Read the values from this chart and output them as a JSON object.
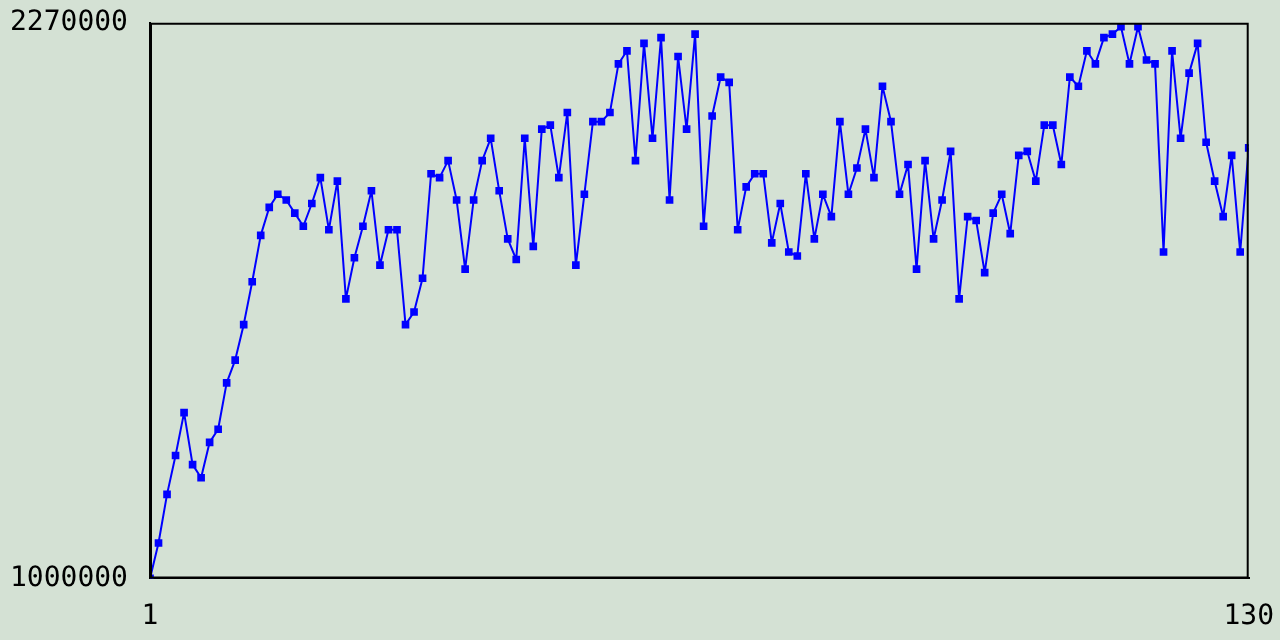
{
  "chart_data": {
    "type": "line",
    "x": [
      1,
      2,
      3,
      4,
      5,
      6,
      7,
      8,
      9,
      10,
      11,
      12,
      13,
      14,
      15,
      16,
      17,
      18,
      19,
      20,
      21,
      22,
      23,
      24,
      25,
      26,
      27,
      28,
      29,
      30,
      31,
      32,
      33,
      34,
      35,
      36,
      37,
      38,
      39,
      40,
      41,
      42,
      43,
      44,
      45,
      46,
      47,
      48,
      49,
      50,
      51,
      52,
      53,
      54,
      55,
      56,
      57,
      58,
      59,
      60,
      61,
      62,
      63,
      64,
      65,
      66,
      67,
      68,
      69,
      70,
      71,
      72,
      73,
      74,
      75,
      76,
      77,
      78,
      79,
      80,
      81,
      82,
      83,
      84,
      85,
      86,
      87,
      88,
      89,
      90,
      91,
      92,
      93,
      94,
      95,
      96,
      97,
      98,
      99,
      100,
      101,
      102,
      103,
      104,
      105,
      106,
      107,
      108,
      109,
      110,
      111,
      112,
      113,
      114,
      115,
      116,
      117,
      118,
      119,
      120,
      121,
      122,
      123,
      124,
      125,
      126,
      127,
      128,
      129,
      130
    ],
    "series": [
      {
        "color": "#0000ff",
        "values": [
          1000000,
          1081000,
          1192000,
          1281000,
          1379000,
          1260000,
          1230000,
          1311000,
          1341000,
          1447000,
          1499000,
          1580000,
          1678000,
          1784000,
          1848000,
          1878000,
          1865000,
          1835000,
          1805000,
          1857000,
          1916000,
          1797000,
          1908000,
          1639000,
          1733000,
          1805000,
          1886000,
          1716000,
          1797000,
          1797000,
          1580000,
          1609000,
          1686000,
          1925000,
          1916000,
          1955000,
          1865000,
          1707000,
          1865000,
          1955000,
          2006000,
          1886000,
          1776000,
          1729000,
          2006000,
          1759000,
          2027000,
          2036000,
          1916000,
          2065000,
          1716000,
          1878000,
          2044000,
          2044000,
          2065000,
          2176000,
          2206000,
          1955000,
          2223000,
          2006000,
          2236000,
          1865000,
          2193000,
          2027000,
          2244000,
          1805000,
          2057000,
          2146000,
          2134000,
          1797000,
          1895000,
          1925000,
          1925000,
          1767000,
          1857000,
          1746000,
          1737000,
          1925000,
          1776000,
          1878000,
          1827000,
          2044000,
          1878000,
          1938000,
          2027000,
          1916000,
          2125000,
          2044000,
          1878000,
          1946000,
          1707000,
          1955000,
          1776000,
          1865000,
          1976000,
          1639000,
          1827000,
          1818000,
          1699000,
          1835000,
          1878000,
          1788000,
          1967000,
          1976000,
          1908000,
          2036000,
          2036000,
          1946000,
          2146000,
          2125000,
          2206000,
          2176000,
          2236000,
          2244000,
          2261000,
          2176000,
          2261000,
          2185000,
          2176000,
          1746000,
          2206000,
          2006000,
          2155000,
          2223000,
          1997000,
          1908000,
          1827000,
          1967000,
          1746000,
          1984000
        ]
      }
    ],
    "xlim": [
      1,
      130
    ],
    "xticks": [
      1,
      130
    ],
    "ylim": [
      1000000,
      2270000
    ],
    "yticks": [
      1000000,
      2270000
    ],
    "marker": "square",
    "line_style": "solid",
    "grid": false,
    "legend": false
  }
}
